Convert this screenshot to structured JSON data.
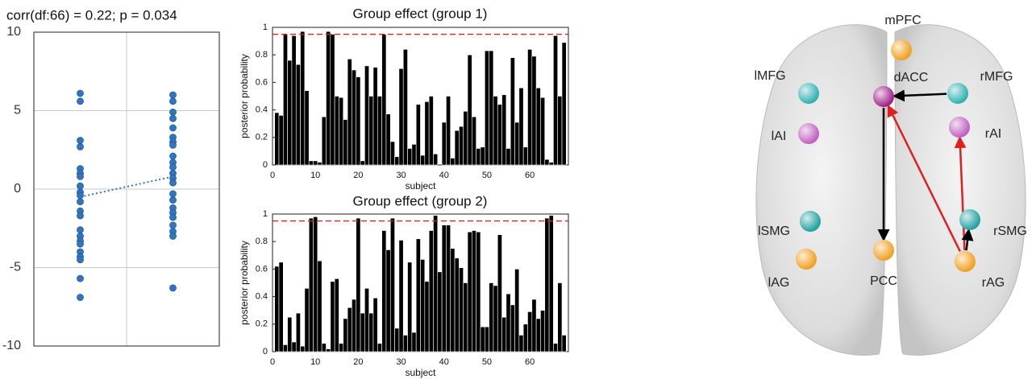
{
  "chart_data": [
    {
      "type": "strip",
      "title": "corr(df:66) = 0.22; p = 0.034",
      "ylim": [
        -10,
        10
      ],
      "yticks": [
        -10,
        -5,
        0,
        5,
        10
      ],
      "grid": true,
      "series": [
        {
          "color": "#2f75c0",
          "values": [
            6.1,
            5.6,
            3.1,
            2.7,
            1.3,
            1.0,
            0.8,
            0.2,
            -0.2,
            -0.4,
            -0.8,
            -1.4,
            -1.7,
            -2.6,
            -3.0,
            -3.3,
            -3.5,
            -4.0,
            -4.3,
            -4.5,
            -5.7,
            -6.9
          ]
        },
        {
          "color": "#2f75c0",
          "values": [
            6.0,
            5.6,
            4.9,
            4.5,
            3.9,
            3.3,
            3.0,
            2.8,
            2.1,
            1.7,
            1.4,
            1.0,
            0.7,
            0.4,
            -0.3,
            -0.7,
            -1.2,
            -1.5,
            -1.8,
            -2.3,
            -2.7,
            -3.0,
            -6.3
          ]
        }
      ],
      "fit_line": {
        "values": [
          -0.5,
          0.8
        ],
        "color": "#2f75c0"
      }
    },
    {
      "type": "bar",
      "title": "Group effect (group 1)",
      "xlabel": "subject",
      "ylabel": "posterior probability",
      "x": [
        1,
        2,
        3,
        4,
        5,
        6,
        7,
        8,
        9,
        10,
        11,
        12,
        13,
        14,
        15,
        16,
        17,
        18,
        19,
        20,
        21,
        22,
        23,
        24,
        25,
        26,
        27,
        28,
        29,
        30,
        31,
        32,
        33,
        34,
        35,
        36,
        37,
        38,
        39,
        40,
        41,
        42,
        43,
        44,
        45,
        46,
        47,
        48,
        49,
        50,
        51,
        52,
        53,
        54,
        55,
        56,
        57,
        58,
        59,
        60,
        61,
        62,
        63,
        64,
        65,
        66,
        67,
        68
      ],
      "values": [
        0.38,
        0.36,
        0.95,
        0.76,
        0.94,
        0.73,
        0.97,
        0.54,
        0.03,
        0.03,
        0.02,
        0.35,
        0.97,
        0.95,
        0.5,
        0.49,
        0.33,
        0.77,
        0.69,
        0.64,
        0.03,
        0.72,
        0.5,
        0.71,
        0.5,
        0.95,
        0.37,
        0.17,
        0.06,
        0.7,
        0.84,
        0.12,
        0.15,
        0.44,
        0.07,
        0.46,
        0.5,
        0.08,
        0.0,
        0.31,
        0.5,
        0.05,
        0.25,
        0.28,
        0.39,
        0.8,
        0.35,
        0.12,
        0.13,
        0.83,
        0.83,
        0.5,
        0.44,
        0.51,
        0.12,
        0.78,
        0.31,
        0.56,
        0.13,
        0.84,
        0.79,
        0.56,
        0.49,
        0.04,
        0.02,
        0.94,
        0.5,
        0.89
      ],
      "color": "#000000",
      "xlim": [
        0,
        69
      ],
      "xticks": [
        0,
        10,
        20,
        30,
        40,
        50,
        60
      ],
      "ylim": [
        0,
        1
      ],
      "yticks": [
        0,
        0.2,
        0.4,
        0.6,
        0.8,
        1
      ],
      "reference_line": {
        "value": 0.95,
        "color": "#e02020"
      }
    },
    {
      "type": "bar",
      "title": "Group effect (group 2)",
      "xlabel": "subject",
      "ylabel": "posterior probability",
      "x": [
        1,
        2,
        3,
        4,
        5,
        6,
        7,
        8,
        9,
        10,
        11,
        12,
        13,
        14,
        15,
        16,
        17,
        18,
        19,
        20,
        21,
        22,
        23,
        24,
        25,
        26,
        27,
        28,
        29,
        30,
        31,
        32,
        33,
        34,
        35,
        36,
        37,
        38,
        39,
        40,
        41,
        42,
        43,
        44,
        45,
        46,
        47,
        48,
        49,
        50,
        51,
        52,
        53,
        54,
        55,
        56,
        57,
        58,
        59,
        60,
        61,
        62,
        63,
        64,
        65,
        66,
        67,
        68
      ],
      "values": [
        0.62,
        0.65,
        0.05,
        0.25,
        0.07,
        0.28,
        0.04,
        0.46,
        0.97,
        0.98,
        0.66,
        0.06,
        0.02,
        0.51,
        0.53,
        0.06,
        0.24,
        0.32,
        0.38,
        0.97,
        0.28,
        0.46,
        0.28,
        0.39,
        0.06,
        0.88,
        0.74,
        0.97,
        0.17,
        0.81,
        0.12,
        0.65,
        0.14,
        0.82,
        0.67,
        0.51,
        0.88,
        0.99,
        0.58,
        0.92,
        0.92,
        0.75,
        0.68,
        0.61,
        0.5,
        0.87,
        0.88,
        0.87,
        0.18,
        0.18,
        0.5,
        0.48,
        0.85,
        0.25,
        0.42,
        0.34,
        0.6,
        0.12,
        0.2,
        0.29,
        0.38,
        0.24,
        0.3,
        0.97,
        0.99,
        0.06,
        0.5,
        0.12
      ],
      "color": "#000000",
      "xlim": [
        0,
        69
      ],
      "xticks": [
        0,
        10,
        20,
        30,
        40,
        50,
        60
      ],
      "ylim": [
        0,
        1
      ],
      "yticks": [
        0,
        0.2,
        0.4,
        0.6,
        0.8,
        1
      ],
      "reference_line": {
        "value": 0.95,
        "color": "#e02020"
      }
    }
  ],
  "diagram": {
    "nodes": [
      {
        "label": "mPFC",
        "color": "#f0a020"
      },
      {
        "label": "lMFG",
        "color": "#30b0b0"
      },
      {
        "label": "dACC",
        "color": "#a0208a"
      },
      {
        "label": "rMFG",
        "color": "#30b0b0"
      },
      {
        "label": "lAI",
        "color": "#c060c0"
      },
      {
        "label": "rAI",
        "color": "#c060c0"
      },
      {
        "label": "lSMG",
        "color": "#20a0a0"
      },
      {
        "label": "rSMG",
        "color": "#20a0a0"
      },
      {
        "label": "PCC",
        "color": "#f0a020"
      },
      {
        "label": "lAG",
        "color": "#f0a020"
      },
      {
        "label": "rAG",
        "color": "#f0a020"
      }
    ],
    "edges": [
      {
        "from": "rMFG",
        "to": "dACC",
        "color": "#000000"
      },
      {
        "from": "dACC",
        "to": "PCC",
        "color": "#000000"
      },
      {
        "from": "rAG",
        "to": "dACC",
        "color": "#e02020"
      },
      {
        "from": "rAG",
        "to": "rAI",
        "color": "#e02020"
      },
      {
        "from": "rAG",
        "to": "rSMG",
        "color": "#000000"
      }
    ]
  }
}
